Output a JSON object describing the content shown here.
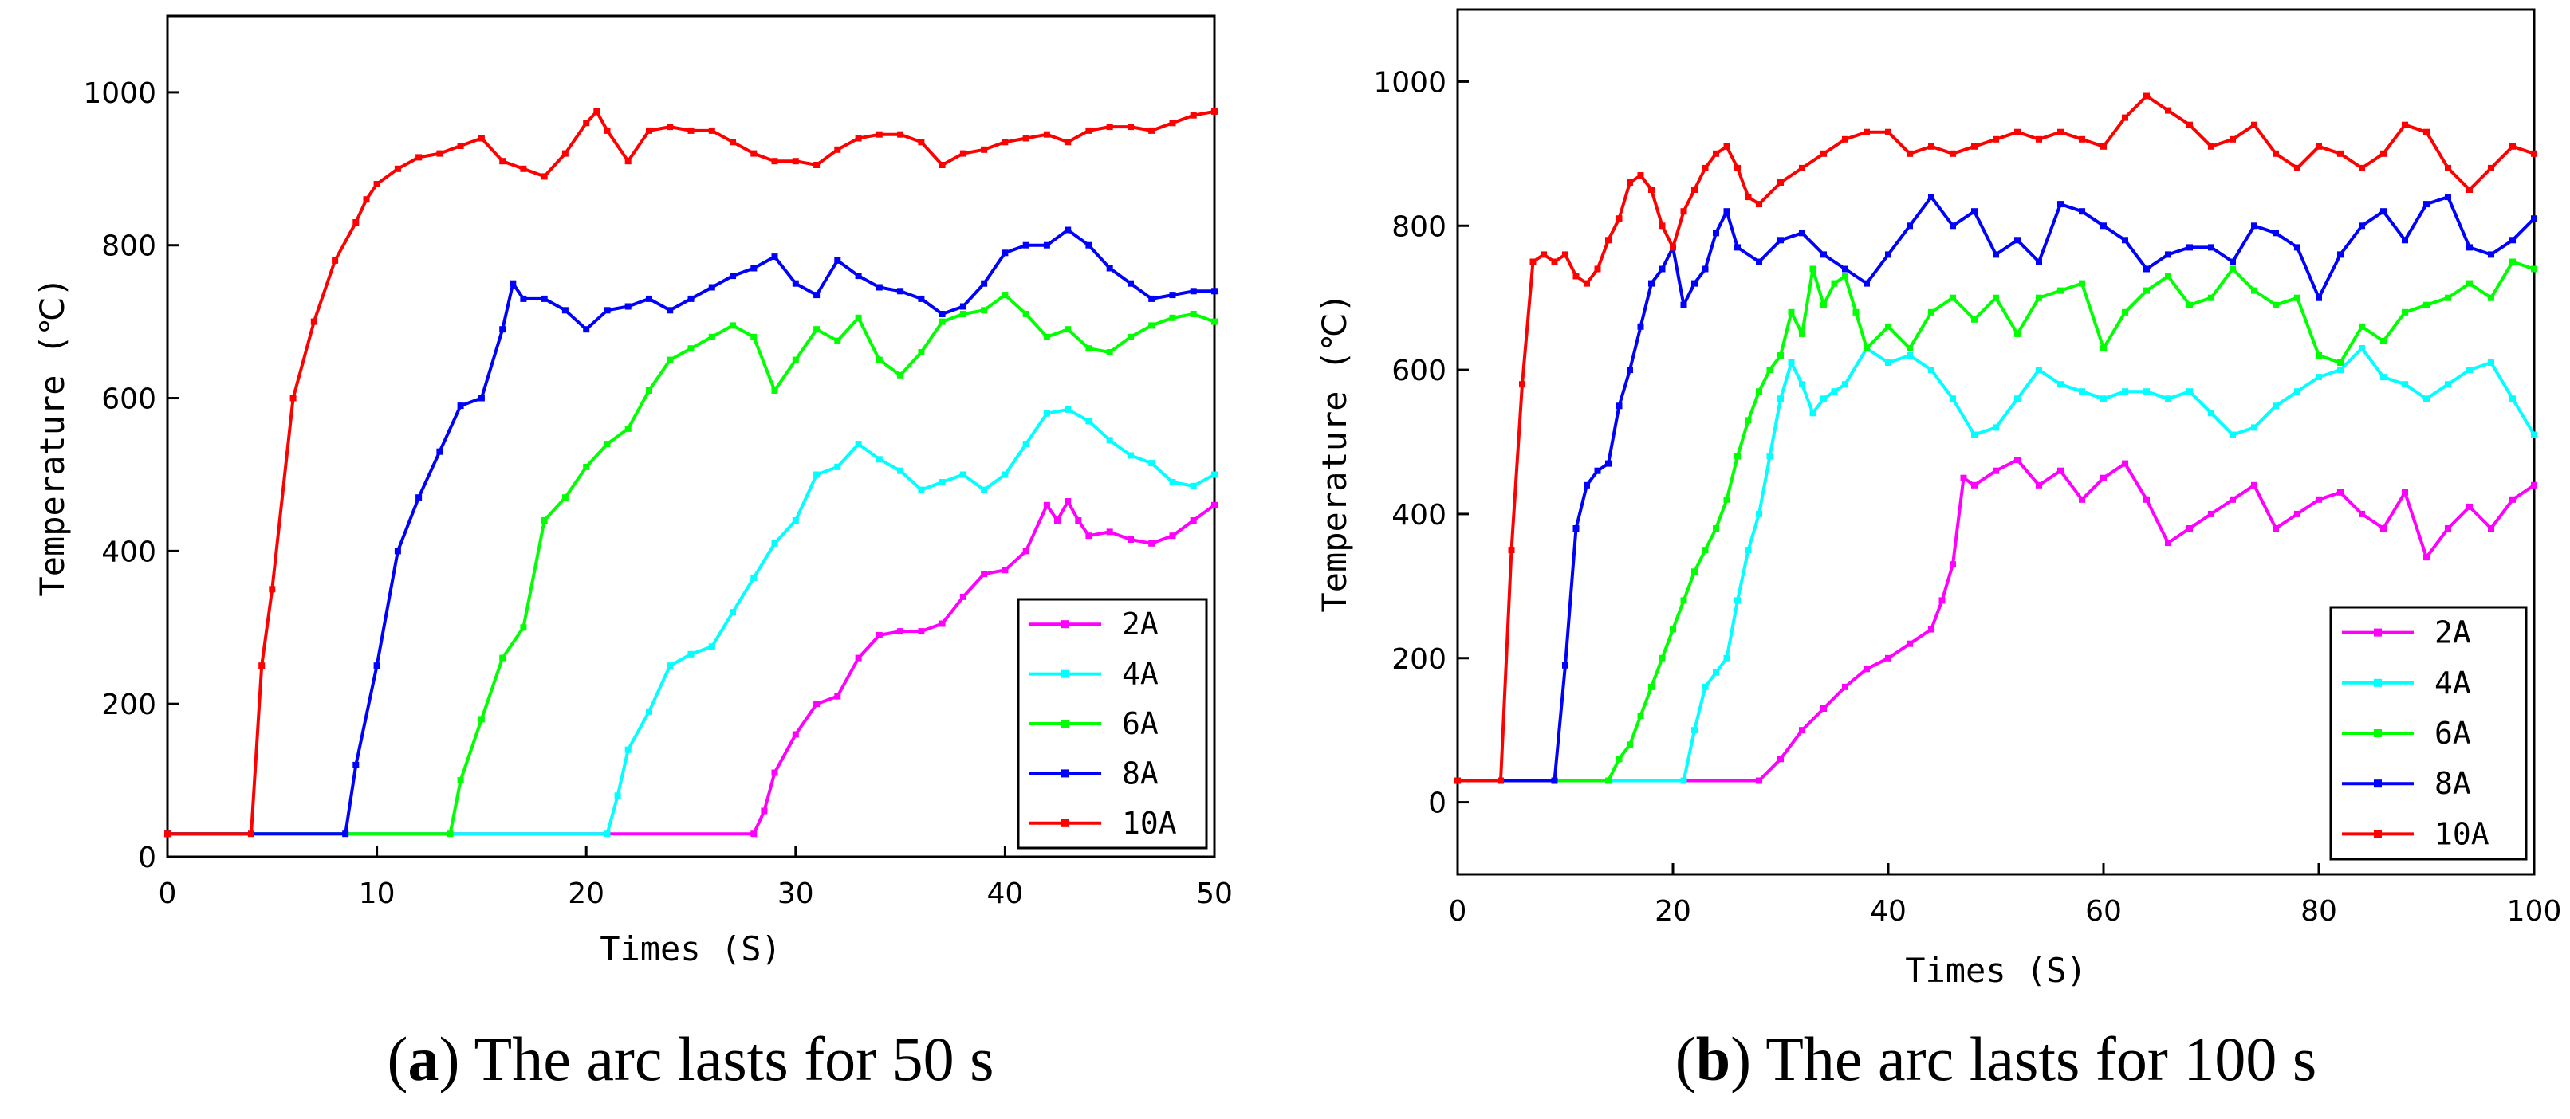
{
  "chart_data": [
    {
      "type": "line",
      "panel": "a",
      "caption": {
        "label": "a",
        "text": "The arc lasts for 50 s"
      },
      "xlabel": "Times (S)",
      "ylabel": "Temperature (℃)",
      "xlim": [
        0,
        50
      ],
      "ylim": [
        0,
        1100
      ],
      "xticks": [
        0,
        10,
        20,
        30,
        40,
        50
      ],
      "yticks": [
        0,
        200,
        400,
        600,
        800,
        1000
      ],
      "legend_position": "bottom-right",
      "series": [
        {
          "name": "2A",
          "color": "#ff00ff",
          "x": [
            0,
            28,
            28.5,
            29,
            30,
            31,
            32,
            33,
            34,
            35,
            36,
            37,
            38,
            39,
            40,
            41,
            42,
            42.5,
            43,
            43.5,
            44,
            45,
            46,
            47,
            48,
            49,
            50
          ],
          "y": [
            30,
            30,
            60,
            110,
            160,
            200,
            210,
            260,
            290,
            295,
            295,
            305,
            340,
            370,
            375,
            400,
            460,
            440,
            465,
            440,
            420,
            425,
            415,
            410,
            420,
            440,
            460
          ]
        },
        {
          "name": "4A",
          "color": "#00ffff",
          "x": [
            0,
            21,
            21.5,
            22,
            23,
            24,
            25,
            26,
            27,
            28,
            29,
            30,
            31,
            32,
            33,
            34,
            35,
            36,
            37,
            38,
            39,
            40,
            41,
            42,
            43,
            44,
            45,
            46,
            47,
            48,
            49,
            50
          ],
          "y": [
            30,
            30,
            80,
            140,
            190,
            250,
            265,
            275,
            320,
            365,
            410,
            440,
            500,
            510,
            540,
            520,
            505,
            480,
            490,
            500,
            480,
            500,
            540,
            580,
            585,
            570,
            545,
            525,
            515,
            490,
            485,
            500
          ]
        },
        {
          "name": "6A",
          "color": "#00ff00",
          "x": [
            0,
            13.5,
            14,
            15,
            16,
            17,
            18,
            19,
            20,
            21,
            22,
            23,
            24,
            25,
            26,
            27,
            28,
            29,
            30,
            31,
            32,
            33,
            34,
            35,
            36,
            37,
            38,
            39,
            40,
            41,
            42,
            43,
            44,
            45,
            46,
            47,
            48,
            49,
            50
          ],
          "y": [
            30,
            30,
            100,
            180,
            260,
            300,
            440,
            470,
            510,
            540,
            560,
            610,
            650,
            665,
            680,
            695,
            680,
            610,
            650,
            690,
            675,
            705,
            650,
            630,
            660,
            700,
            710,
            715,
            735,
            710,
            680,
            690,
            665,
            660,
            680,
            695,
            705,
            710,
            700
          ]
        },
        {
          "name": "8A",
          "color": "#0000ff",
          "x": [
            0,
            8.5,
            9,
            10,
            11,
            12,
            13,
            14,
            15,
            16,
            16.5,
            17,
            18,
            19,
            20,
            21,
            22,
            23,
            24,
            25,
            26,
            27,
            28,
            29,
            30,
            31,
            32,
            33,
            34,
            35,
            36,
            37,
            38,
            39,
            40,
            41,
            42,
            43,
            44,
            45,
            46,
            47,
            48,
            49,
            50
          ],
          "y": [
            30,
            30,
            120,
            250,
            400,
            470,
            530,
            590,
            600,
            690,
            750,
            730,
            730,
            715,
            690,
            715,
            720,
            730,
            715,
            730,
            745,
            760,
            770,
            785,
            750,
            735,
            780,
            760,
            745,
            740,
            730,
            710,
            720,
            750,
            790,
            800,
            800,
            820,
            800,
            770,
            750,
            730,
            735,
            740,
            740
          ]
        },
        {
          "name": "10A",
          "color": "#ff0000",
          "x": [
            0,
            4,
            4.5,
            5,
            6,
            7,
            8,
            9,
            9.5,
            10,
            11,
            12,
            13,
            14,
            15,
            16,
            17,
            18,
            19,
            20,
            20.5,
            21,
            22,
            23,
            24,
            25,
            26,
            27,
            28,
            29,
            30,
            31,
            32,
            33,
            34,
            35,
            36,
            37,
            38,
            39,
            40,
            41,
            42,
            43,
            44,
            45,
            46,
            47,
            48,
            49,
            50
          ],
          "y": [
            30,
            30,
            250,
            350,
            600,
            700,
            780,
            830,
            860,
            880,
            900,
            915,
            920,
            930,
            940,
            910,
            900,
            890,
            920,
            960,
            975,
            950,
            910,
            950,
            955,
            950,
            950,
            935,
            920,
            910,
            910,
            905,
            925,
            940,
            945,
            945,
            935,
            905,
            920,
            925,
            935,
            940,
            945,
            935,
            950,
            955,
            955,
            950,
            960,
            970,
            975
          ]
        }
      ]
    },
    {
      "type": "line",
      "panel": "b",
      "caption": {
        "label": "b",
        "text": "The arc lasts for 100 s"
      },
      "xlabel": "Times (S)",
      "ylabel": "Temperature (℃)",
      "xlim": [
        0,
        100
      ],
      "ylim": [
        -100,
        1100
      ],
      "xticks": [
        0,
        20,
        40,
        60,
        80,
        100
      ],
      "yticks": [
        0,
        200,
        400,
        600,
        800,
        1000
      ],
      "legend_position": "bottom-right",
      "series": [
        {
          "name": "2A",
          "color": "#ff00ff",
          "x": [
            0,
            28,
            30,
            32,
            34,
            36,
            38,
            40,
            42,
            44,
            45,
            46,
            47,
            48,
            50,
            52,
            54,
            56,
            58,
            60,
            62,
            64,
            66,
            68,
            70,
            72,
            74,
            76,
            78,
            80,
            82,
            84,
            86,
            88,
            90,
            92,
            94,
            96,
            98,
            100
          ],
          "y": [
            30,
            30,
            60,
            100,
            130,
            160,
            185,
            200,
            220,
            240,
            280,
            330,
            450,
            440,
            460,
            475,
            440,
            460,
            420,
            450,
            470,
            420,
            360,
            380,
            400,
            420,
            440,
            380,
            400,
            420,
            430,
            400,
            380,
            430,
            340,
            380,
            410,
            380,
            420,
            440
          ]
        },
        {
          "name": "4A",
          "color": "#00ffff",
          "x": [
            0,
            21,
            22,
            23,
            24,
            25,
            26,
            27,
            28,
            29,
            30,
            31,
            32,
            33,
            34,
            35,
            36,
            38,
            40,
            42,
            44,
            46,
            48,
            50,
            52,
            54,
            56,
            58,
            60,
            62,
            64,
            66,
            68,
            70,
            72,
            74,
            76,
            78,
            80,
            82,
            84,
            86,
            88,
            90,
            92,
            94,
            96,
            98,
            100
          ],
          "y": [
            30,
            30,
            100,
            160,
            180,
            200,
            280,
            350,
            400,
            480,
            560,
            610,
            580,
            540,
            560,
            570,
            580,
            630,
            610,
            620,
            600,
            560,
            510,
            520,
            560,
            600,
            580,
            570,
            560,
            570,
            570,
            560,
            570,
            540,
            510,
            520,
            550,
            570,
            590,
            600,
            630,
            590,
            580,
            560,
            580,
            600,
            610,
            560,
            510
          ]
        },
        {
          "name": "6A",
          "color": "#00ff00",
          "x": [
            0,
            14,
            15,
            16,
            17,
            18,
            19,
            20,
            21,
            22,
            23,
            24,
            25,
            26,
            27,
            28,
            29,
            30,
            31,
            32,
            33,
            34,
            35,
            36,
            37,
            38,
            40,
            42,
            44,
            46,
            48,
            50,
            52,
            54,
            56,
            58,
            60,
            62,
            64,
            66,
            68,
            70,
            72,
            74,
            76,
            78,
            80,
            82,
            84,
            86,
            88,
            90,
            92,
            94,
            96,
            98,
            100
          ],
          "y": [
            30,
            30,
            60,
            80,
            120,
            160,
            200,
            240,
            280,
            320,
            350,
            380,
            420,
            480,
            530,
            570,
            600,
            620,
            680,
            650,
            740,
            690,
            720,
            730,
            680,
            630,
            660,
            630,
            680,
            700,
            670,
            700,
            650,
            700,
            710,
            720,
            630,
            680,
            710,
            730,
            690,
            700,
            740,
            710,
            690,
            700,
            620,
            610,
            660,
            640,
            680,
            690,
            700,
            720,
            700,
            750,
            740
          ]
        },
        {
          "name": "8A",
          "color": "#0000ff",
          "x": [
            0,
            9,
            10,
            11,
            12,
            13,
            14,
            15,
            16,
            17,
            18,
            19,
            20,
            21,
            22,
            23,
            24,
            25,
            26,
            28,
            30,
            32,
            34,
            36,
            38,
            40,
            42,
            44,
            46,
            48,
            50,
            52,
            54,
            56,
            58,
            60,
            62,
            64,
            66,
            68,
            70,
            72,
            74,
            76,
            78,
            80,
            82,
            84,
            86,
            88,
            90,
            92,
            94,
            96,
            98,
            100
          ],
          "y": [
            30,
            30,
            190,
            380,
            440,
            460,
            470,
            550,
            600,
            660,
            720,
            740,
            770,
            690,
            720,
            740,
            790,
            820,
            770,
            750,
            780,
            790,
            760,
            740,
            720,
            760,
            800,
            840,
            800,
            820,
            760,
            780,
            750,
            830,
            820,
            800,
            780,
            740,
            760,
            770,
            770,
            750,
            800,
            790,
            770,
            700,
            760,
            800,
            820,
            780,
            830,
            840,
            770,
            760,
            780,
            810
          ]
        },
        {
          "name": "10A",
          "color": "#ff0000",
          "x": [
            0,
            4,
            5,
            6,
            7,
            8,
            9,
            10,
            11,
            12,
            13,
            14,
            15,
            16,
            17,
            18,
            19,
            20,
            21,
            22,
            23,
            24,
            25,
            26,
            27,
            28,
            30,
            32,
            34,
            36,
            38,
            40,
            42,
            44,
            46,
            48,
            50,
            52,
            54,
            56,
            58,
            60,
            62,
            64,
            66,
            68,
            70,
            72,
            74,
            76,
            78,
            80,
            82,
            84,
            86,
            88,
            90,
            92,
            94,
            96,
            98,
            100
          ],
          "y": [
            30,
            30,
            350,
            580,
            750,
            760,
            750,
            760,
            730,
            720,
            740,
            780,
            810,
            860,
            870,
            850,
            800,
            770,
            820,
            850,
            880,
            900,
            910,
            880,
            840,
            830,
            860,
            880,
            900,
            920,
            930,
            930,
            900,
            910,
            900,
            910,
            920,
            930,
            920,
            930,
            920,
            910,
            950,
            980,
            960,
            940,
            910,
            920,
            940,
            900,
            880,
            910,
            900,
            880,
            900,
            940,
            930,
            880,
            850,
            880,
            910,
            900
          ]
        }
      ]
    }
  ]
}
